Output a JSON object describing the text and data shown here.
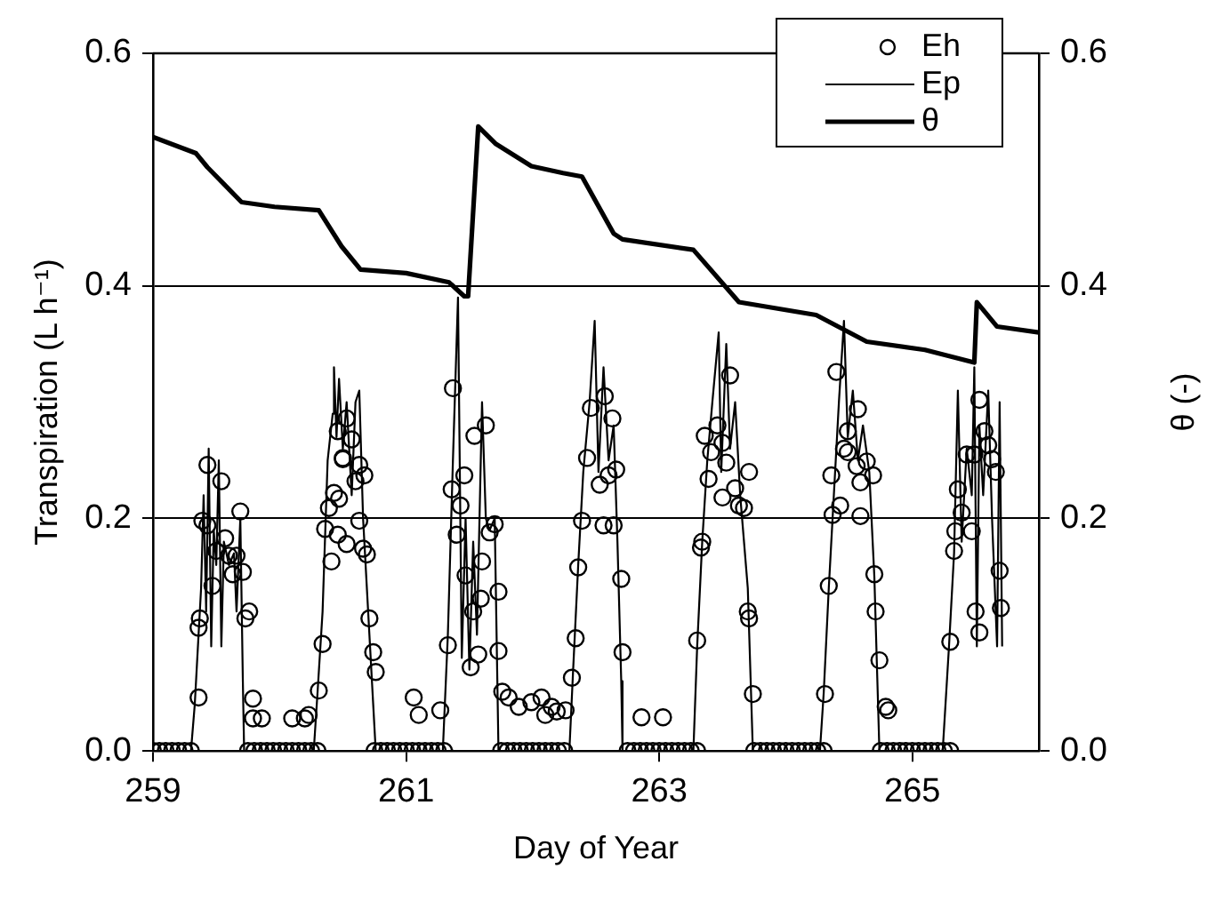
{
  "chart_data": {
    "type": "line",
    "xlabel": "Day of Year",
    "ylabel": "Transpiration (L h⁻¹)",
    "y2label": "θ (-)",
    "xlim": [
      259,
      266
    ],
    "xticks": [
      259,
      261,
      263,
      265
    ],
    "ylim": [
      0,
      0.6
    ],
    "yticks": [
      {
        "value": 0,
        "label": "0.0"
      },
      {
        "value": 0.2,
        "label": "0.2"
      },
      {
        "value": 0.4,
        "label": "0.4"
      },
      {
        "value": 0.6,
        "label": "0.6"
      }
    ],
    "y2lim": [
      0,
      0.6
    ],
    "y2ticks": [
      {
        "value": 0,
        "label": "0.0"
      },
      {
        "value": 0.2,
        "label": "0.2"
      },
      {
        "value": 0.4,
        "label": "0.4"
      },
      {
        "value": 0.6,
        "label": "0.6"
      }
    ],
    "grid": "y",
    "legend": "top right",
    "series": [
      {
        "name": "Eh",
        "type": "scatter",
        "marker": "circle",
        "color": "#000000",
        "x": [
          259.0,
          259.05,
          259.1,
          259.15,
          259.2,
          259.25,
          259.3,
          259.36,
          259.36,
          259.37,
          259.39,
          259.43,
          259.43,
          259.47,
          259.5,
          259.54,
          259.57,
          259.6,
          259.63,
          259.66,
          259.69,
          259.71,
          259.73,
          259.76,
          259.79,
          259.79,
          259.86,
          259.75,
          259.8,
          259.85,
          259.9,
          259.95,
          260.0,
          260.05,
          260.1,
          260.15,
          260.2,
          260.25,
          260.3,
          260.1,
          260.2,
          260.23,
          260.31,
          260.34,
          260.41,
          260.36,
          260.39,
          260.43,
          260.47,
          260.46,
          260.53,
          260.5,
          260.6,
          260.63,
          260.67,
          260.63,
          260.66,
          260.69,
          260.71,
          260.74,
          260.76,
          260.46,
          260.53,
          260.57,
          260.5,
          260.75,
          260.8,
          260.85,
          260.9,
          260.95,
          261.0,
          261.05,
          261.1,
          261.15,
          261.2,
          261.25,
          261.3,
          261.06,
          261.1,
          261.27,
          261.33,
          261.4,
          261.36,
          261.43,
          261.46,
          261.47,
          261.53,
          261.51,
          261.57,
          261.59,
          261.6,
          261.66,
          261.7,
          261.73,
          261.73,
          261.37,
          261.54,
          261.63,
          261.76,
          261.81,
          261.89,
          261.99,
          262.07,
          262.1,
          262.15,
          262.19,
          262.26,
          261.75,
          261.8,
          261.85,
          261.9,
          261.95,
          262.0,
          262.05,
          262.1,
          262.15,
          262.2,
          262.25,
          262.31,
          262.34,
          262.36,
          262.39,
          262.43,
          262.53,
          262.6,
          262.66,
          262.56,
          262.64,
          262.7,
          262.71,
          262.46,
          262.57,
          262.63,
          262.86,
          263.03,
          262.75,
          262.8,
          262.85,
          262.9,
          262.95,
          263.0,
          263.05,
          263.1,
          263.15,
          263.2,
          263.25,
          263.3,
          263.3,
          263.33,
          263.34,
          263.39,
          263.41,
          263.5,
          263.53,
          263.6,
          263.63,
          263.67,
          263.71,
          263.7,
          263.71,
          263.74,
          263.36,
          263.46,
          263.5,
          263.56,
          263.75,
          263.8,
          263.85,
          263.9,
          263.95,
          264.0,
          264.05,
          264.1,
          264.15,
          264.2,
          264.25,
          264.3,
          264.31,
          264.34,
          264.37,
          264.36,
          264.43,
          264.49,
          264.56,
          264.59,
          264.59,
          264.64,
          264.69,
          264.7,
          264.71,
          264.74,
          264.79,
          264.81,
          264.4,
          264.57,
          264.49,
          264.46,
          264.75,
          264.8,
          264.85,
          264.9,
          264.95,
          265.0,
          265.05,
          265.1,
          265.15,
          265.2,
          265.25,
          265.3,
          265.3,
          265.33,
          265.34,
          265.39,
          265.36,
          265.47,
          265.5,
          265.53,
          265.43,
          265.49,
          265.63,
          265.66,
          265.69,
          265.7,
          265.53,
          265.57,
          265.6
        ],
        "values": [
          0,
          0,
          0,
          0,
          0,
          0,
          0,
          0.046,
          0.106,
          0.114,
          0.198,
          0.246,
          0.194,
          0.142,
          0.172,
          0.232,
          0.183,
          0.168,
          0.152,
          0.168,
          0.206,
          0.154,
          0.114,
          0.12,
          0.045,
          0.028,
          0.028,
          0,
          0,
          0,
          0,
          0,
          0,
          0,
          0,
          0,
          0,
          0,
          0,
          0.028,
          0.028,
          0.031,
          0.052,
          0.092,
          0.163,
          0.191,
          0.209,
          0.222,
          0.217,
          0.186,
          0.178,
          0.251,
          0.232,
          0.246,
          0.237,
          0.198,
          0.174,
          0.169,
          0.114,
          0.085,
          0.068,
          0.275,
          0.286,
          0.268,
          0.252,
          0,
          0,
          0,
          0,
          0,
          0,
          0,
          0,
          0,
          0,
          0,
          0,
          0.046,
          0.031,
          0.035,
          0.091,
          0.186,
          0.225,
          0.211,
          0.237,
          0.151,
          0.12,
          0.072,
          0.083,
          0.131,
          0.163,
          0.188,
          0.195,
          0.137,
          0.086,
          0.312,
          0.271,
          0.28,
          0.051,
          0.046,
          0.038,
          0.042,
          0.046,
          0.031,
          0.038,
          0.034,
          0.035,
          0,
          0,
          0,
          0,
          0,
          0,
          0,
          0,
          0,
          0,
          0,
          0.063,
          0.097,
          0.158,
          0.198,
          0.252,
          0.229,
          0.237,
          0.242,
          0.194,
          0.194,
          0.148,
          0.085,
          0.295,
          0.305,
          0.286,
          0.029,
          0.029,
          0,
          0,
          0,
          0,
          0,
          0,
          0,
          0,
          0,
          0,
          0,
          0,
          0.095,
          0.175,
          0.18,
          0.234,
          0.257,
          0.218,
          0.248,
          0.226,
          0.211,
          0.209,
          0.24,
          0.12,
          0.114,
          0.049,
          0.271,
          0.28,
          0.265,
          0.323,
          0,
          0,
          0,
          0,
          0,
          0,
          0,
          0,
          0,
          0,
          0,
          0,
          0.049,
          0.142,
          0.203,
          0.237,
          0.211,
          0.257,
          0.245,
          0.231,
          0.202,
          0.249,
          0.237,
          0.152,
          0.12,
          0.078,
          0.038,
          0.035,
          0.326,
          0.294,
          0.275,
          0.26,
          0,
          0,
          0,
          0,
          0,
          0,
          0,
          0,
          0,
          0,
          0,
          0,
          0.094,
          0.172,
          0.189,
          0.205,
          0.225,
          0.189,
          0.12,
          0.102,
          0.255,
          0.255,
          0.251,
          0.24,
          0.155,
          0.123,
          0.302,
          0.275,
          0.263
        ]
      },
      {
        "name": "Ep",
        "marker": "none",
        "color": "#000000",
        "x": [
          259.0,
          259.3,
          259.33,
          259.36,
          259.38,
          259.4,
          259.42,
          259.44,
          259.46,
          259.48,
          259.5,
          259.52,
          259.54,
          259.56,
          259.6,
          259.64,
          259.66,
          259.69,
          259.71,
          259.72,
          260.27,
          260.3,
          260.34,
          260.38,
          260.42,
          260.43,
          260.45,
          260.47,
          260.5,
          260.53,
          260.57,
          260.6,
          260.63,
          260.66,
          260.7,
          260.74,
          260.76,
          261.29,
          261.33,
          261.37,
          261.41,
          261.44,
          261.47,
          261.5,
          261.53,
          261.56,
          261.6,
          261.63,
          261.66,
          261.7,
          261.73,
          262.29,
          262.32,
          262.36,
          262.4,
          262.45,
          262.49,
          262.52,
          262.56,
          262.6,
          262.64,
          262.67,
          262.7,
          262.71,
          263.27,
          263.3,
          263.34,
          263.38,
          263.42,
          263.47,
          263.49,
          263.53,
          263.56,
          263.6,
          263.64,
          263.67,
          263.7,
          263.74,
          264.27,
          264.3,
          264.34,
          264.38,
          264.42,
          264.46,
          264.49,
          264.53,
          264.57,
          264.61,
          264.66,
          264.7,
          264.74,
          265.24,
          265.29,
          265.33,
          265.36,
          265.39,
          265.43,
          265.47,
          265.49,
          265.51,
          265.53,
          265.56,
          265.6,
          265.63,
          265.67,
          265.69,
          265.71
        ],
        "values": [
          0,
          0,
          0.04,
          0.1,
          0.14,
          0.22,
          0.12,
          0.26,
          0.09,
          0.19,
          0.16,
          0.25,
          0.09,
          0.18,
          0.16,
          0.17,
          0.12,
          0.2,
          0.06,
          0,
          0,
          0.05,
          0.12,
          0.25,
          0.29,
          0.33,
          0.27,
          0.32,
          0.26,
          0.3,
          0.22,
          0.3,
          0.31,
          0.2,
          0.12,
          0.04,
          0,
          0,
          0.1,
          0.25,
          0.39,
          0.08,
          0.2,
          0.07,
          0.18,
          0.1,
          0.3,
          0.2,
          0.19,
          0.2,
          0,
          0,
          0.07,
          0.16,
          0.24,
          0.3,
          0.37,
          0.24,
          0.33,
          0.25,
          0.28,
          0.18,
          0.06,
          0,
          0,
          0.09,
          0.18,
          0.25,
          0.3,
          0.36,
          0.24,
          0.35,
          0.26,
          0.3,
          0.22,
          0.18,
          0.14,
          0,
          0,
          0.05,
          0.14,
          0.22,
          0.3,
          0.37,
          0.27,
          0.31,
          0.25,
          0.28,
          0.24,
          0.15,
          0,
          0,
          0.09,
          0.17,
          0.31,
          0.18,
          0.26,
          0.22,
          0.33,
          0.09,
          0.28,
          0.22,
          0.31,
          0.2,
          0.09,
          0.3,
          0.09
        ]
      },
      {
        "name": "θ",
        "marker": "none",
        "axis": "y2",
        "color": "#000000",
        "x": [
          259.0,
          259.34,
          259.43,
          259.7,
          259.96,
          260.31,
          260.49,
          260.64,
          261.0,
          261.34,
          261.46,
          261.49,
          261.57,
          261.71,
          261.99,
          262.24,
          262.39,
          262.64,
          262.71,
          263.27,
          263.63,
          264.24,
          264.64,
          265.1,
          265.49,
          265.51,
          265.67,
          266.0
        ],
        "values": [
          0.528,
          0.514,
          0.502,
          0.472,
          0.468,
          0.465,
          0.434,
          0.414,
          0.411,
          0.403,
          0.391,
          0.391,
          0.537,
          0.522,
          0.503,
          0.497,
          0.494,
          0.445,
          0.44,
          0.431,
          0.386,
          0.375,
          0.352,
          0.345,
          0.334,
          0.386,
          0.365,
          0.36
        ]
      }
    ]
  }
}
